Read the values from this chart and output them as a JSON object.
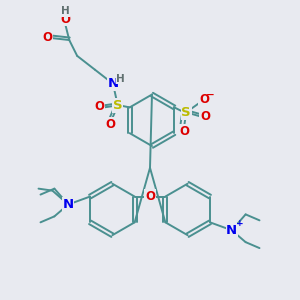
{
  "bg_color": "#e8eaf0",
  "colors": {
    "bond": "#4a9090",
    "C": "#4a9090",
    "H": "#607070",
    "O": "#dd0000",
    "N": "#0000ee",
    "S": "#bbbb00",
    "plus": "#0000ee",
    "minus": "#dd0000"
  },
  "bw": 1.4,
  "fs": 7.5
}
